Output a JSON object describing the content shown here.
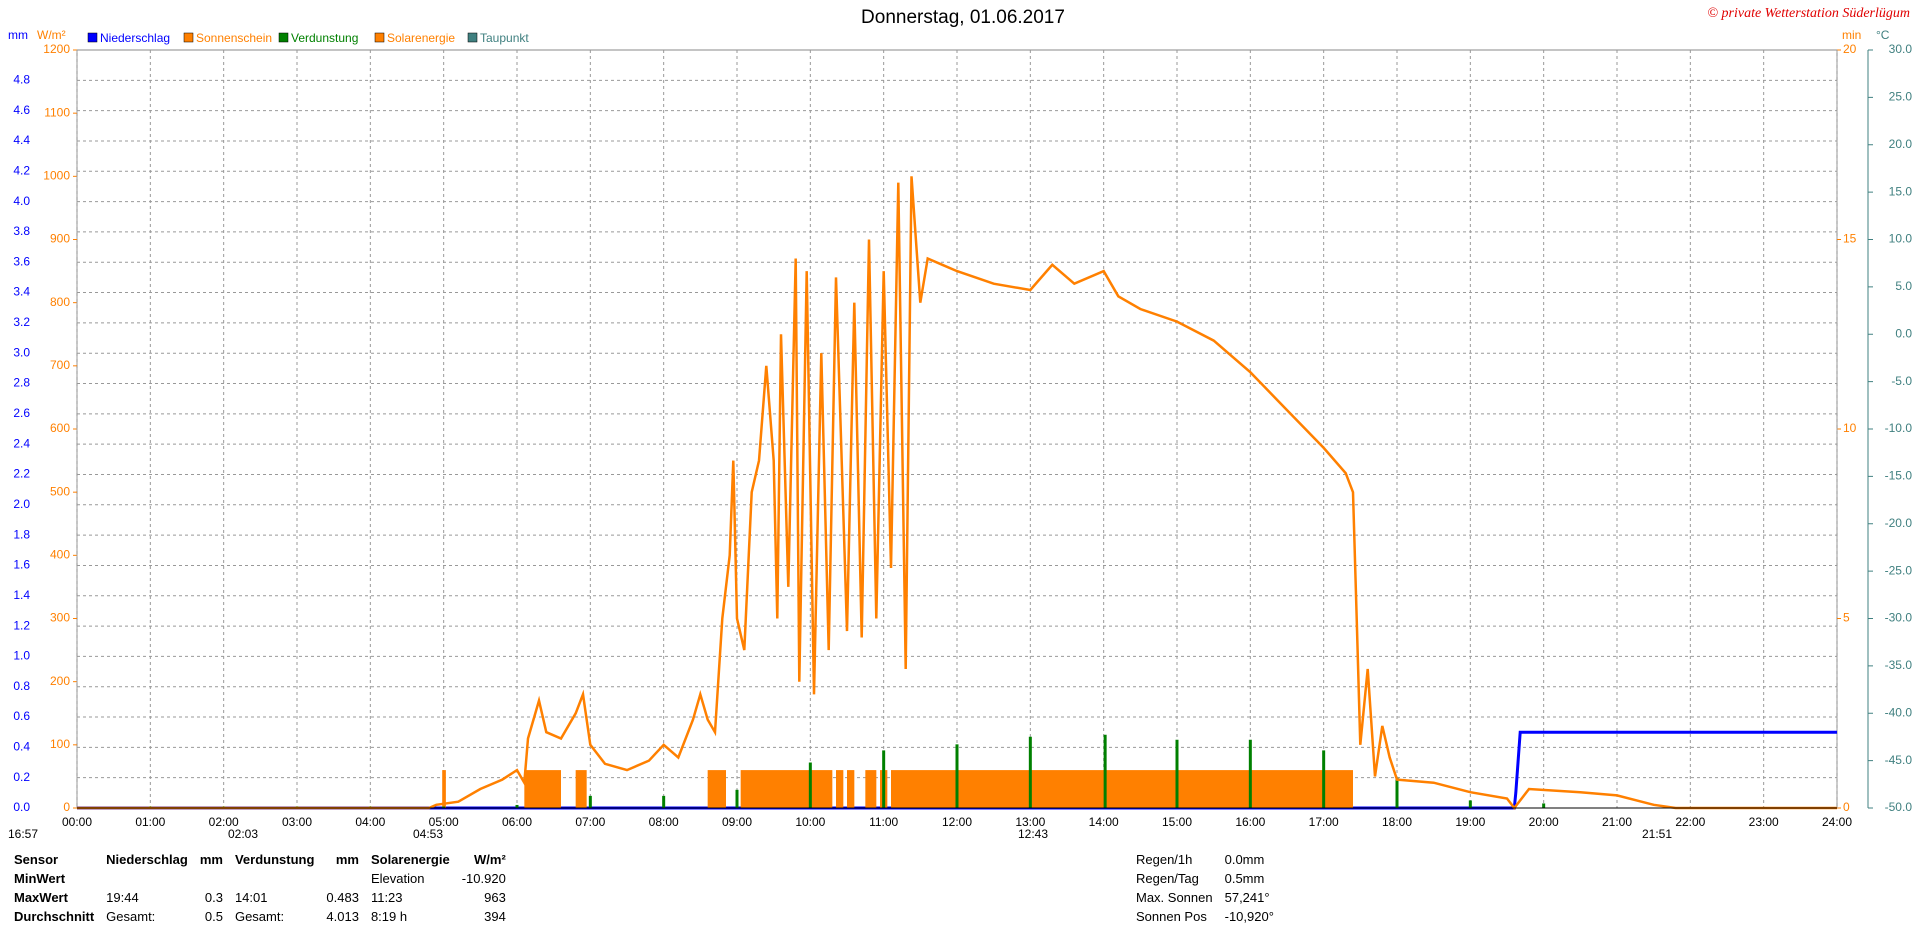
{
  "chart_data": {
    "type": "line",
    "title": "Donnerstag, 01.06.2017",
    "copyright": "© private Wetterstation Süderlügum",
    "y_label": "mm",
    "y2_label": "W/m²",
    "y3_label": "min",
    "y4_label": "°C",
    "grid": true,
    "xlim": [
      0,
      24
    ],
    "xticks": [
      {
        "value": 0,
        "label": "00:00"
      },
      {
        "value": 1,
        "label": "01:00"
      },
      {
        "value": 2,
        "label": "02:00"
      },
      {
        "value": 3,
        "label": "03:00"
      },
      {
        "value": 4,
        "label": "04:00"
      },
      {
        "value": 5,
        "label": "05:00"
      },
      {
        "value": 6,
        "label": "06:00"
      },
      {
        "value": 7,
        "label": "07:00"
      },
      {
        "value": 8,
        "label": "08:00"
      },
      {
        "value": 9,
        "label": "09:00"
      },
      {
        "value": 10,
        "label": "10:00"
      },
      {
        "value": 11,
        "label": "11:00"
      },
      {
        "value": 12,
        "label": "12:00"
      },
      {
        "value": 13,
        "label": "13:00"
      },
      {
        "value": 14,
        "label": "14:00"
      },
      {
        "value": 15,
        "label": "15:00"
      },
      {
        "value": 16,
        "label": "16:00"
      },
      {
        "value": 17,
        "label": "17:00"
      },
      {
        "value": 18,
        "label": "18:00"
      },
      {
        "value": 19,
        "label": "19:00"
      },
      {
        "value": 20,
        "label": "20:00"
      },
      {
        "value": 21,
        "label": "21:00"
      },
      {
        "value": 22,
        "label": "22:00"
      },
      {
        "value": 23,
        "label": "23:00"
      },
      {
        "value": 24,
        "label": "24:00"
      }
    ],
    "ylim": [
      0,
      5
    ],
    "yticks": [
      {
        "value": 0,
        "label": "0.0"
      },
      0.2,
      0.4,
      0.6,
      0.8,
      {
        "value": 1,
        "label": "1.0"
      },
      1.2,
      1.4,
      1.6,
      1.8,
      {
        "value": 2,
        "label": "2.0"
      },
      2.2,
      2.4,
      2.6,
      2.8,
      {
        "value": 3,
        "label": "3.0"
      },
      3.2,
      3.4,
      3.6,
      3.8,
      {
        "value": 4,
        "label": "4.0"
      },
      4.2,
      4.4,
      4.6,
      4.8
    ],
    "y2lim": [
      0,
      1200
    ],
    "y2ticks": [
      0,
      100,
      200,
      300,
      400,
      500,
      600,
      700,
      800,
      900,
      1000,
      1100,
      1200
    ],
    "y3lim": [
      0,
      20
    ],
    "y3ticks": [
      0,
      5,
      10,
      15,
      20
    ],
    "y4lim": [
      -50,
      30
    ],
    "y4ticks": [
      {
        "value": -50,
        "label": "-50.0"
      },
      {
        "value": -45,
        "label": "-45.0"
      },
      {
        "value": -40,
        "label": "-40.0"
      },
      {
        "value": -35,
        "label": "-35.0"
      },
      {
        "value": -30,
        "label": "-30.0"
      },
      {
        "value": -25,
        "label": "-25.0"
      },
      {
        "value": -20,
        "label": "-20.0"
      },
      {
        "value": -15,
        "label": "-15.0"
      },
      {
        "value": -10,
        "label": "-10.0"
      },
      {
        "value": -5,
        "label": "-5.0"
      },
      {
        "value": 0,
        "label": "0.0"
      },
      {
        "value": 5,
        "label": "5.0"
      },
      {
        "value": 10,
        "label": "10.0"
      },
      {
        "value": 15,
        "label": "15.0"
      },
      {
        "value": 20,
        "label": "20.0"
      },
      {
        "value": 25,
        "label": "25.0"
      },
      {
        "value": 30,
        "label": "30.0"
      }
    ],
    "series": [
      {
        "name": "Niederschlag",
        "color": "#0000ff",
        "axis": "y",
        "style": "line",
        "x": [
          0,
          19.6,
          19.62,
          19.65,
          19.68,
          24
        ],
        "values": [
          0,
          0,
          0.1,
          0.3,
          0.5,
          0.5
        ]
      },
      {
        "name": "Sonnenschein",
        "color": "#ff8000",
        "axis": "y3",
        "style": "bar",
        "x": [
          4.98,
          6.1,
          6.8,
          8.6,
          9.05,
          10.35,
          10.5,
          10.75,
          10.95,
          11.1
        ],
        "x_end": [
          5.03,
          6.6,
          6.95,
          8.85,
          10.3,
          10.45,
          10.6,
          10.9,
          11.05,
          17.4
        ],
        "values": [
          1,
          1,
          1,
          1,
          1,
          1,
          1,
          1,
          1,
          1
        ]
      },
      {
        "name": "Verdunstung",
        "color": "#008000",
        "axis": "y",
        "style": "spike",
        "x": [
          1,
          2,
          3,
          4,
          5,
          6,
          7,
          8,
          9,
          10,
          11,
          12,
          13,
          14.02,
          15,
          16,
          17,
          18,
          19,
          20
        ],
        "values": [
          0.01,
          0.01,
          0.01,
          0.01,
          0.01,
          0.02,
          0.08,
          0.08,
          0.12,
          0.3,
          0.38,
          0.42,
          0.47,
          0.483,
          0.45,
          0.45,
          0.38,
          0.2,
          0.05,
          0.03
        ]
      },
      {
        "name": "Solarenergie",
        "color": "#ff8000",
        "axis": "y2",
        "style": "line",
        "x": [
          0,
          4.8,
          4.9,
          5.2,
          5.5,
          5.8,
          6,
          6.1,
          6.15,
          6.3,
          6.4,
          6.6,
          6.8,
          6.9,
          7,
          7.2,
          7.5,
          7.8,
          8,
          8.2,
          8.4,
          8.5,
          8.6,
          8.7,
          8.8,
          8.9,
          8.95,
          9,
          9.1,
          9.2,
          9.3,
          9.4,
          9.5,
          9.55,
          9.6,
          9.7,
          9.8,
          9.85,
          9.95,
          10.05,
          10.15,
          10.25,
          10.35,
          10.5,
          10.6,
          10.7,
          10.8,
          10.9,
          11,
          11.1,
          11.2,
          11.3,
          11.38,
          11.5,
          11.6,
          11.8,
          12,
          12.5,
          13,
          13.3,
          13.6,
          14,
          14.2,
          14.5,
          15,
          15.5,
          16,
          16.5,
          17,
          17.3,
          17.4,
          17.45,
          17.5,
          17.6,
          17.7,
          17.8,
          17.9,
          18,
          18.5,
          19,
          19.5,
          19.6,
          19.8,
          20.5,
          21,
          21.5,
          21.8,
          24
        ],
        "values": [
          0,
          0,
          5,
          10,
          30,
          45,
          60,
          40,
          110,
          170,
          120,
          110,
          150,
          180,
          100,
          70,
          60,
          75,
          100,
          80,
          140,
          180,
          140,
          120,
          300,
          400,
          550,
          300,
          250,
          500,
          550,
          700,
          550,
          300,
          750,
          350,
          870,
          200,
          850,
          180,
          720,
          250,
          840,
          280,
          800,
          270,
          900,
          300,
          850,
          380,
          990,
          220,
          1000,
          800,
          870,
          860,
          850,
          830,
          820,
          860,
          830,
          850,
          810,
          790,
          770,
          740,
          690,
          630,
          570,
          530,
          500,
          300,
          100,
          220,
          50,
          130,
          80,
          45,
          40,
          25,
          15,
          0,
          30,
          25,
          20,
          5,
          0,
          0
        ]
      },
      {
        "name": "Taupunkt",
        "color": "#408080",
        "axis": "y4",
        "style": "line",
        "x": [],
        "values": []
      }
    ],
    "sun_times": [
      "16:57",
      "02:03",
      "04:53",
      "12:43",
      "21:51"
    ]
  },
  "table": {
    "header": [
      "Sensor",
      "Niederschlag",
      "mm",
      "Verdunstung",
      "mm",
      "Solarenergie",
      "W/m²"
    ],
    "rows": [
      [
        "MinWert",
        "",
        "",
        "",
        "",
        "Elevation",
        "-10.920"
      ],
      [
        "MaxWert",
        "19:44",
        "0.3",
        "14:01",
        "0.483",
        "11:23",
        "963"
      ],
      [
        "Durchschnitt",
        "Gesamt:",
        "0.5",
        "Gesamt:",
        "4.013",
        "8:19 h",
        "394"
      ]
    ]
  },
  "stats": [
    [
      "Regen/1h",
      "0.0mm"
    ],
    [
      "Regen/Tag",
      "0.5mm"
    ],
    [
      "Max. Sonnen",
      "57,241°"
    ],
    [
      "Sonnen Pos",
      "-10,920°"
    ]
  ]
}
